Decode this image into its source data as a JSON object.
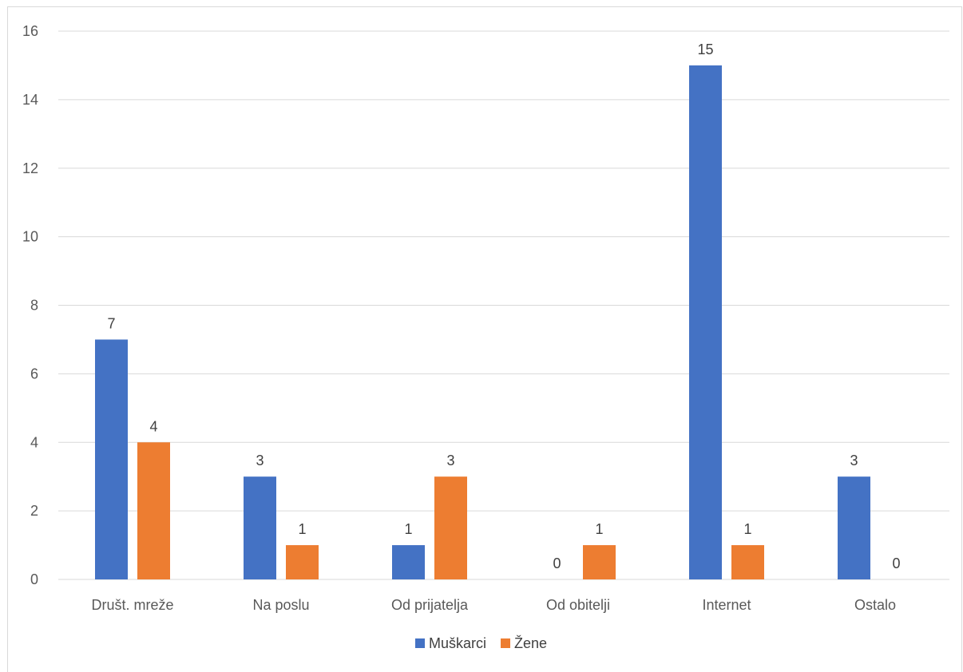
{
  "chart_data": {
    "type": "bar",
    "title": "",
    "xlabel": "",
    "ylabel": "",
    "categories": [
      "Društ. mreže",
      "Na poslu",
      "Od prijatelja",
      "Od obitelji",
      "Internet",
      "Ostalo"
    ],
    "series": [
      {
        "name": "Muškarci",
        "color": "#4472c4",
        "values": [
          7,
          3,
          1,
          0,
          15,
          3
        ]
      },
      {
        "name": "Žene",
        "color": "#ed7d31",
        "values": [
          4,
          1,
          3,
          1,
          1,
          0
        ]
      }
    ],
    "ylim": [
      0,
      16
    ],
    "yticks": [
      0,
      2,
      4,
      6,
      8,
      10,
      12,
      14,
      16
    ],
    "grid": true,
    "legend": "bottom",
    "data_labels": true
  }
}
